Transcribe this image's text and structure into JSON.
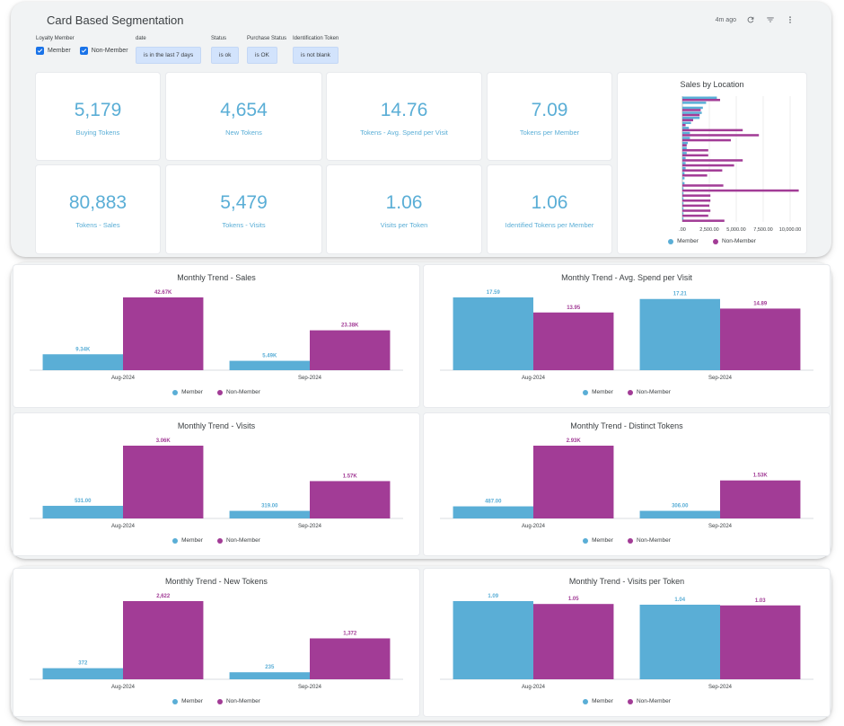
{
  "header": {
    "title": "Card Based Segmentation",
    "updated": "4m ago"
  },
  "icons": {
    "refresh": "refresh-icon",
    "filter": "filter-icon",
    "more": "more-vert-icon"
  },
  "filters": {
    "loyalty": {
      "label": "Loyalty Member",
      "options": [
        "Member",
        "Non-Member"
      ]
    },
    "date": {
      "label": "date",
      "value": "is in the last 7 days"
    },
    "status": {
      "label": "Status",
      "value": "is ok"
    },
    "purchase": {
      "label": "Purchase Status",
      "value": "is OK"
    },
    "ident": {
      "label": "Identification Token",
      "value": "is not blank"
    }
  },
  "kpis": [
    {
      "value": "5,179",
      "label": "Buying Tokens"
    },
    {
      "value": "4,654",
      "label": "New Tokens"
    },
    {
      "value": "14.76",
      "label": "Tokens - Avg. Spend per Visit"
    },
    {
      "value": "7.09",
      "label": "Tokens per Member"
    },
    {
      "value": "80,883",
      "label": "Tokens - Sales"
    },
    {
      "value": "5,479",
      "label": "Tokens - Visits"
    },
    {
      "value": "1.06",
      "label": "Visits per Token"
    },
    {
      "value": "1.06",
      "label": "Identified Tokens per Member"
    }
  ],
  "colors": {
    "member": "#5aaed6",
    "non_member": "#a23c96",
    "axis": "#dadce0",
    "text": "#3c4043"
  },
  "legend": {
    "member": "Member",
    "non_member": "Non-Member"
  },
  "chart_data": [
    {
      "type": "bar",
      "orientation": "horizontal",
      "title": "Sales by Location",
      "xticks": [
        ".00",
        "2,500.00",
        "5,000.00",
        "7,500.00",
        "10,000.00"
      ],
      "xlim": [
        0,
        11000
      ],
      "series": [
        {
          "name": "Member",
          "values": [
            3200,
            2200,
            1900,
            1800,
            1600,
            800,
            600,
            700,
            700,
            500,
            400,
            400,
            300,
            300,
            300,
            200,
            200,
            200,
            100,
            100,
            100,
            100,
            100,
            100,
            100
          ]
        },
        {
          "name": "Non-Member",
          "values": [
            3500,
            0,
            1700,
            1600,
            1000,
            300,
            5600,
            7100,
            4500,
            400,
            2400,
            2400,
            5600,
            4800,
            3700,
            2300,
            0,
            3800,
            10800,
            2600,
            2600,
            2500,
            2600,
            2400,
            3900
          ]
        }
      ]
    },
    {
      "type": "bar",
      "title": "Monthly Trend - Sales",
      "categories": [
        "Aug-2024",
        "Sep-2024"
      ],
      "series": [
        {
          "name": "Member",
          "values": [
            9.34,
            5.49
          ],
          "labels": [
            "9.34K",
            "5.49K"
          ]
        },
        {
          "name": "Non-Member",
          "values": [
            42.67,
            23.38
          ],
          "labels": [
            "42.67K",
            "23.38K"
          ]
        }
      ]
    },
    {
      "type": "bar",
      "title": "Monthly Trend - Avg. Spend per Visit",
      "categories": [
        "Aug-2024",
        "Sep-2024"
      ],
      "series": [
        {
          "name": "Member",
          "values": [
            17.59,
            17.21
          ],
          "labels": [
            "17.59",
            "17.21"
          ]
        },
        {
          "name": "Non-Member",
          "values": [
            13.95,
            14.89
          ],
          "labels": [
            "13.95",
            "14.89"
          ]
        }
      ]
    },
    {
      "type": "bar",
      "title": "Monthly Trend - Visits",
      "categories": [
        "Aug-2024",
        "Sep-2024"
      ],
      "series": [
        {
          "name": "Member",
          "values": [
            531,
            319
          ],
          "labels": [
            "531.00",
            "319.00"
          ]
        },
        {
          "name": "Non-Member",
          "values": [
            3060,
            1570
          ],
          "labels": [
            "3.06K",
            "1.57K"
          ]
        }
      ]
    },
    {
      "type": "bar",
      "title": "Monthly Trend - Distinct Tokens",
      "categories": [
        "Aug-2024",
        "Sep-2024"
      ],
      "series": [
        {
          "name": "Member",
          "values": [
            487,
            306
          ],
          "labels": [
            "487.00",
            "306.00"
          ]
        },
        {
          "name": "Non-Member",
          "values": [
            2930,
            1530
          ],
          "labels": [
            "2.93K",
            "1.53K"
          ]
        }
      ]
    },
    {
      "type": "bar",
      "title": "Monthly Trend - New Tokens",
      "categories": [
        "Aug-2024",
        "Sep-2024"
      ],
      "series": [
        {
          "name": "Member",
          "values": [
            372,
            235
          ],
          "labels": [
            "372",
            "235"
          ]
        },
        {
          "name": "Non-Member",
          "values": [
            2622,
            1372
          ],
          "labels": [
            "2,622",
            "1,372"
          ]
        }
      ]
    },
    {
      "type": "bar",
      "title": "Monthly Trend - Visits per Token",
      "categories": [
        "Aug-2024",
        "Sep-2024"
      ],
      "series": [
        {
          "name": "Member",
          "values": [
            1.09,
            1.04
          ],
          "labels": [
            "1.09",
            "1.04"
          ]
        },
        {
          "name": "Non-Member",
          "values": [
            1.05,
            1.03
          ],
          "labels": [
            "1.05",
            "1.03"
          ]
        }
      ]
    }
  ]
}
